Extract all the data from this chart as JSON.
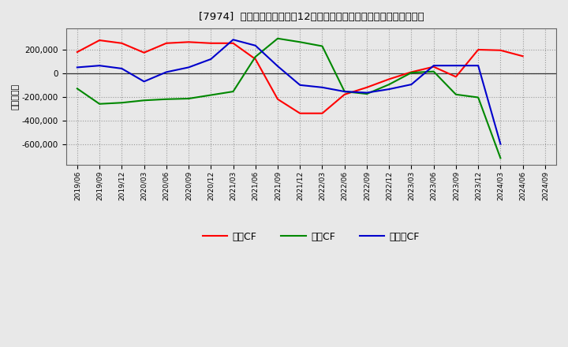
{
  "title": "[7974]  キャッシュフローの12か月移動合計の対前年同期増減額の推移",
  "ylabel": "（百万円）",
  "background_color": "#f0f0f0",
  "plot_background_color": "#f0f0f0",
  "grid_color": "#999999",
  "x_labels": [
    "2019/06",
    "2019/09",
    "2019/12",
    "2020/03",
    "2020/06",
    "2020/09",
    "2020/12",
    "2021/03",
    "2021/06",
    "2021/09",
    "2021/12",
    "2022/03",
    "2022/06",
    "2022/09",
    "2022/12",
    "2023/03",
    "2023/06",
    "2023/09",
    "2023/12",
    "2024/03",
    "2024/06",
    "2024/09"
  ],
  "operating_cf": [
    180000,
    280000,
    255000,
    175000,
    255000,
    265000,
    255000,
    255000,
    120000,
    -220000,
    -340000,
    -340000,
    -180000,
    -120000,
    -50000,
    10000,
    55000,
    -30000,
    200000,
    195000,
    145000,
    null
  ],
  "investing_cf": [
    -130000,
    -260000,
    -250000,
    -230000,
    -220000,
    -215000,
    -185000,
    -155000,
    140000,
    295000,
    265000,
    230000,
    -155000,
    -175000,
    -95000,
    5000,
    15000,
    -180000,
    -205000,
    -720000,
    null,
    null
  ],
  "free_cf": [
    50000,
    65000,
    40000,
    -70000,
    10000,
    50000,
    120000,
    285000,
    235000,
    60000,
    -100000,
    -120000,
    -155000,
    -165000,
    -135000,
    -95000,
    65000,
    65000,
    65000,
    -600000,
    null,
    null
  ],
  "operating_color": "#ff0000",
  "investing_color": "#008800",
  "free_color": "#0000cc",
  "ylim": [
    -780000,
    380000
  ],
  "yticks": [
    -600000,
    -400000,
    -200000,
    0,
    200000
  ],
  "line_width": 1.5,
  "legend_labels": [
    "営業CF",
    "投資CF",
    "フリーCF"
  ]
}
